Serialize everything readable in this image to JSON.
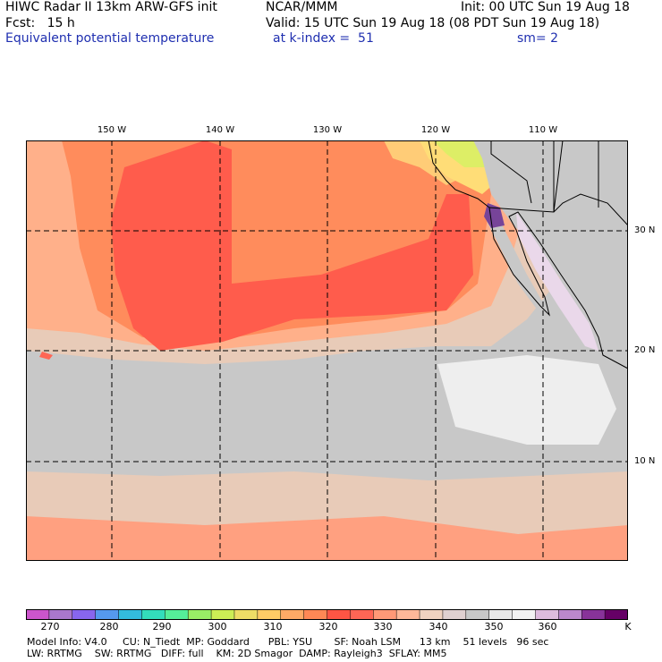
{
  "header": {
    "line1_left": "HIWC Radar II 13km ARW-GFS init",
    "line1_mid": "NCAR/MMM",
    "line1_right": "Init: 00 UTC Sun 19 Aug 18",
    "line2_left": "Fcst:   15 h",
    "line2_right": "Valid: 15 UTC Sun 19 Aug 18 (08 PDT Sun 19 Aug 18)",
    "line3_left": "Equivalent potential temperature",
    "line3_mid": "at k-index =  51",
    "line3_right": "sm= 2"
  },
  "map": {
    "lon_labels": [
      "150 W",
      "140 W",
      "130 W",
      "120 W",
      "110 W"
    ],
    "lat_labels": [
      "30 N",
      "20 N",
      "10 N"
    ]
  },
  "colorbar": {
    "colors": [
      "#cc55cc",
      "#aa77cc",
      "#8866ee",
      "#5599ee",
      "#33bbdd",
      "#33ddbb",
      "#55ee99",
      "#99ee66",
      "#ccee55",
      "#eedd66",
      "#ffcc66",
      "#ffaa66",
      "#ff8855",
      "#ff5544",
      "#ff6655",
      "#ff9977",
      "#ffb899",
      "#f0d2c0",
      "#e0d0d0",
      "#c8c8c8",
      "#e8e8e8",
      "#f2f2f2",
      "#ddbbdd",
      "#bb88cc",
      "#883399",
      "#660066"
    ],
    "tick_labels": [
      "270",
      "280",
      "290",
      "300",
      "310",
      "320",
      "330",
      "340",
      "350",
      "360"
    ],
    "unit": "K"
  },
  "footer": {
    "line1": "Model Info: V4.0     CU: N_Tiedt  MP: Goddard      PBL: YSU       SF: Noah LSM      13 km    51 levels   96 sec",
    "line2": "LW: RRTMG    SW: RRTMG   DIFF: full    KM: 2D Smagor  DAMP: Rayleigh3  SFLAY: MM5"
  }
}
